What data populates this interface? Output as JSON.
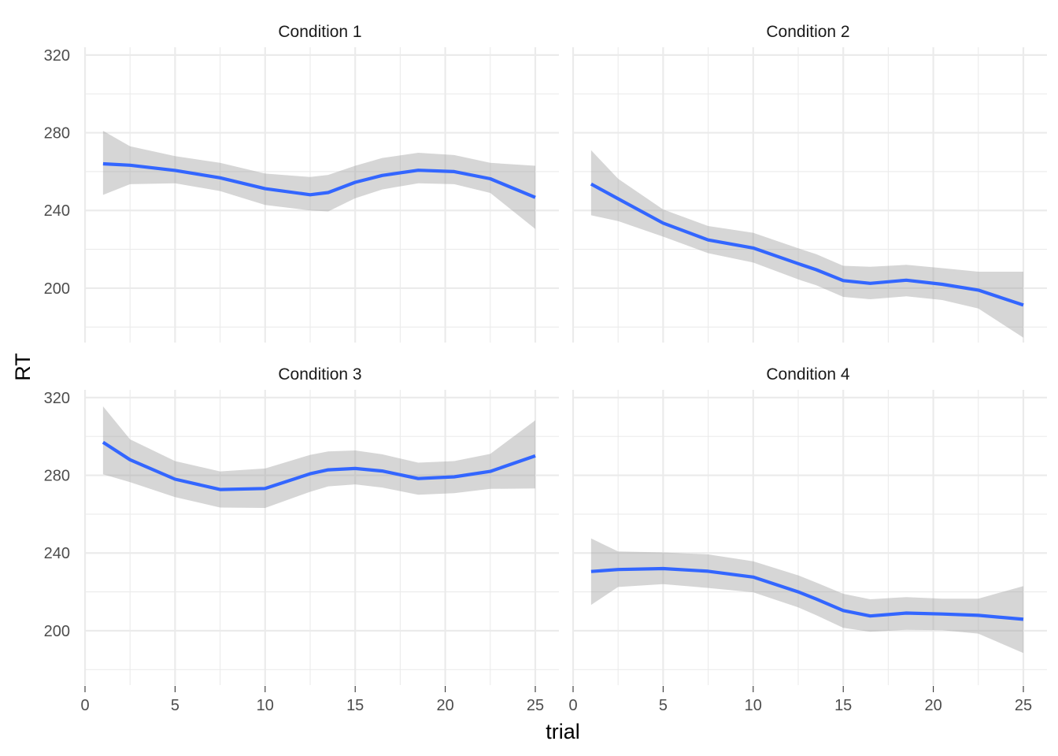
{
  "chart_data": {
    "type": "line",
    "xlabel": "trial",
    "ylabel": "RT",
    "xlim": [
      0,
      25
    ],
    "ylim": [
      172,
      324
    ],
    "x_ticks": [
      0,
      5,
      10,
      15,
      20,
      25
    ],
    "x_minor_ticks": [
      2.5,
      7.5,
      12.5,
      17.5,
      22.5
    ],
    "y_ticks": [
      200,
      240,
      280,
      320
    ],
    "y_minor_ticks": [
      180,
      220,
      260,
      300
    ],
    "grid": true,
    "line_color": "#3366ff",
    "band_color": "#999999",
    "panels": [
      {
        "title": "Condition 1",
        "x": [
          1,
          2.5,
          5,
          7.5,
          10,
          12.5,
          13.5,
          15,
          16.5,
          18.5,
          20.5,
          22.5,
          25
        ],
        "y": [
          264,
          263.3,
          260.6,
          256.8,
          251.2,
          248.1,
          249.2,
          254.5,
          258,
          260.7,
          260,
          256.3,
          246.7
        ],
        "y_lower": [
          248,
          253.5,
          254,
          250,
          242.8,
          240,
          239.5,
          246.3,
          250.8,
          254,
          253.5,
          249,
          230.5
        ],
        "y_upper": [
          281,
          273,
          268,
          264.5,
          259,
          257.2,
          258.3,
          263,
          267,
          269.7,
          268.5,
          264.5,
          263
        ]
      },
      {
        "title": "Condition 2",
        "x": [
          1,
          2.5,
          5,
          7.5,
          10,
          12.5,
          13.5,
          15,
          16.5,
          18.5,
          20.5,
          22.5,
          25
        ],
        "y": [
          253.6,
          246,
          233.5,
          224.8,
          220.7,
          212.6,
          209.5,
          203.9,
          202.5,
          204.1,
          202,
          199,
          191.3
        ],
        "y_lower": [
          237.5,
          234.5,
          226.5,
          218,
          213.2,
          204.5,
          201.5,
          195.5,
          194.3,
          195.8,
          193.9,
          189.5,
          174.5
        ],
        "y_upper": [
          271,
          256.3,
          240.5,
          232,
          228.5,
          220.5,
          217.5,
          211.5,
          211,
          212,
          210.3,
          208.5,
          208.5
        ]
      },
      {
        "title": "Condition 3",
        "x": [
          1,
          2.5,
          5,
          7.5,
          10,
          12.5,
          13.5,
          15,
          16.5,
          18.5,
          20.5,
          22.5,
          25
        ],
        "y": [
          297,
          288,
          278,
          272.7,
          273.2,
          280.8,
          282.8,
          283.5,
          282.2,
          278.3,
          279.2,
          282,
          290
        ],
        "y_lower": [
          280.5,
          276.5,
          268.8,
          263.4,
          263.2,
          271.5,
          274.3,
          275.3,
          273.7,
          270,
          270.8,
          273,
          273.2
        ],
        "y_upper": [
          315.5,
          298.5,
          287.3,
          282,
          283.5,
          290.5,
          292.3,
          292.8,
          290.8,
          286.5,
          287.3,
          291,
          308.3
        ]
      },
      {
        "title": "Condition 4",
        "x": [
          1,
          2.5,
          5,
          7.5,
          10,
          12.5,
          13.5,
          15,
          16.5,
          18.5,
          20.5,
          22.5,
          25
        ],
        "y": [
          230.5,
          231.5,
          232,
          230.6,
          227.6,
          220,
          216.3,
          210.4,
          207.6,
          209.1,
          208.6,
          207.9,
          205.9
        ],
        "y_lower": [
          213.3,
          222.5,
          224,
          222,
          219.8,
          212,
          208,
          201.5,
          199.5,
          200.5,
          200.3,
          198.5,
          188.5
        ],
        "y_upper": [
          247.5,
          240.8,
          240.3,
          239.3,
          235.7,
          228.5,
          224.8,
          219,
          216.2,
          217.3,
          216.5,
          216.5,
          223
        ]
      }
    ]
  }
}
